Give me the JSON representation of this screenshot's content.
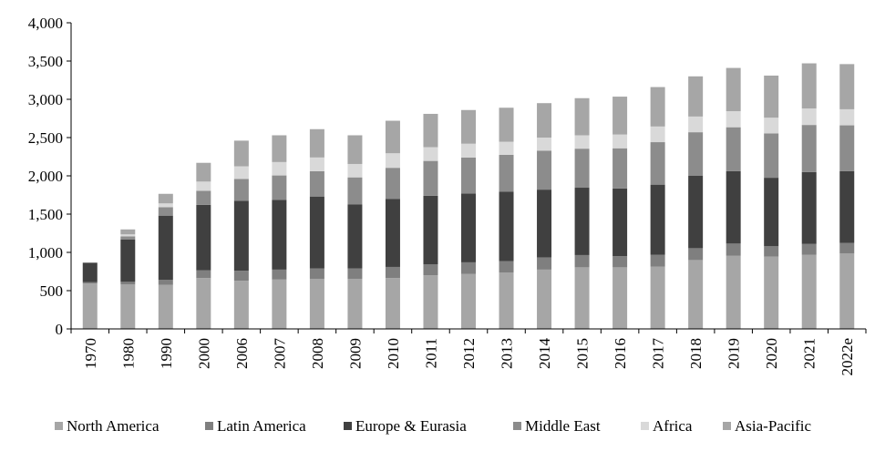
{
  "chart_data": {
    "type": "bar",
    "stacked": true,
    "title": "",
    "xlabel": "",
    "ylabel": "",
    "ylim": [
      0,
      4000
    ],
    "yticks": [
      "0",
      "500",
      "1,000",
      "1,500",
      "2,000",
      "2,500",
      "3,000",
      "3,500",
      "4,000"
    ],
    "ytick_values": [
      0,
      500,
      1000,
      1500,
      2000,
      2500,
      3000,
      3500,
      4000
    ],
    "grid": false,
    "legend_position": "bottom",
    "categories": [
      "1970",
      "1980",
      "1990",
      "2000",
      "2006",
      "2007",
      "2008",
      "2009",
      "2010",
      "2011",
      "2012",
      "2013",
      "2014",
      "2015",
      "2016",
      "2017",
      "2018",
      "2019",
      "2020",
      "2021",
      "2022e"
    ],
    "series": [
      {
        "name": "North America",
        "color": "#a6a6a6",
        "values": [
          595,
          580,
          575,
          665,
          630,
          645,
          655,
          655,
          665,
          700,
          720,
          735,
          775,
          805,
          805,
          815,
          900,
          955,
          945,
          970,
          985
        ]
      },
      {
        "name": "Latin America",
        "color": "#7f7f7f",
        "values": [
          15,
          35,
          65,
          100,
          130,
          130,
          135,
          135,
          145,
          145,
          150,
          150,
          160,
          160,
          145,
          155,
          155,
          160,
          135,
          140,
          140
        ]
      },
      {
        "name": "Europe & Eurasia",
        "color": "#404040",
        "values": [
          255,
          555,
          840,
          855,
          915,
          910,
          940,
          835,
          890,
          895,
          900,
          910,
          885,
          880,
          885,
          915,
          945,
          945,
          895,
          940,
          935
        ]
      },
      {
        "name": "Middle East",
        "color": "#8c8c8c",
        "values": [
          0,
          40,
          110,
          185,
          285,
          320,
          330,
          355,
          405,
          455,
          470,
          480,
          510,
          510,
          525,
          555,
          570,
          575,
          580,
          615,
          600
        ]
      },
      {
        "name": "Africa",
        "color": "#d9d9d9",
        "values": [
          0,
          25,
          50,
          120,
          165,
          175,
          180,
          175,
          190,
          180,
          180,
          170,
          170,
          175,
          180,
          205,
          205,
          210,
          205,
          215,
          210
        ]
      },
      {
        "name": "Asia-Pacific",
        "color": "#a6a6a6",
        "values": [
          0,
          65,
          125,
          245,
          335,
          350,
          370,
          375,
          425,
          435,
          440,
          445,
          450,
          485,
          495,
          515,
          525,
          565,
          550,
          590,
          590
        ]
      }
    ]
  }
}
